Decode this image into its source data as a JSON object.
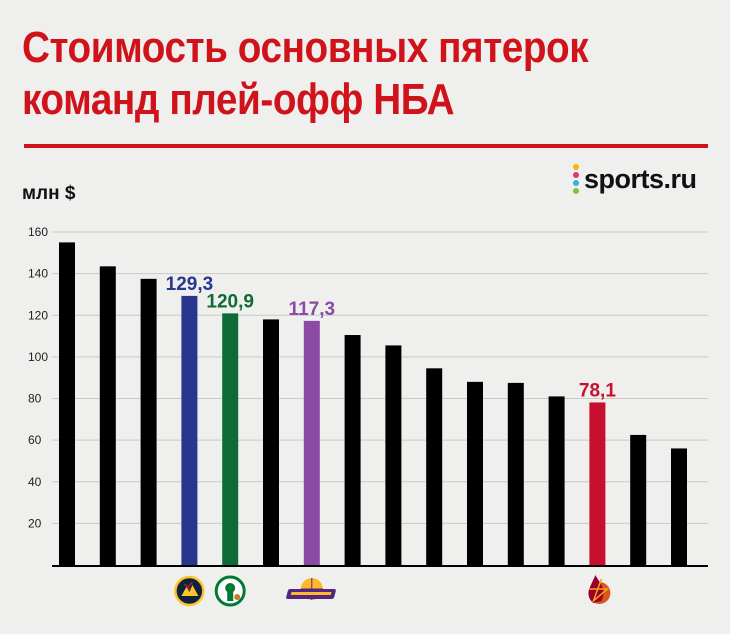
{
  "title": "Стоимость основных пятерок команд плей-офф НБА",
  "logo": {
    "text": "sports.ru",
    "dot_colors": [
      "#f7b500",
      "#e2336f",
      "#2fb3e0",
      "#7cc242"
    ]
  },
  "icons": [
    "nuggets-logo-icon",
    "celtics-logo-icon",
    "lakers-logo-icon",
    "heat-logo-icon"
  ],
  "colors": {
    "title": "#d0121b",
    "default_bar": "#000000",
    "nuggets": "#27378f",
    "celtics": "#0e6b37",
    "lakers": "#8b4aa5",
    "heat": "#c8102e"
  },
  "chart_data": {
    "type": "bar",
    "title": "Стоимость основных пятерок команд плей-офф НБА",
    "ylabel": "млн $",
    "xlabel": "",
    "ylim": [
      0,
      160
    ],
    "yticks": [
      20,
      40,
      60,
      80,
      100,
      120,
      140,
      160
    ],
    "grid": true,
    "values": [
      155,
      143.5,
      137.5,
      129.3,
      120.9,
      118,
      117.3,
      110.5,
      105.5,
      94.5,
      88,
      87.5,
      81,
      78.1,
      62.5,
      56
    ],
    "bar_colors": [
      "#000000",
      "#000000",
      "#000000",
      "#27378f",
      "#0e6b37",
      "#000000",
      "#8b4aa5",
      "#000000",
      "#000000",
      "#000000",
      "#000000",
      "#000000",
      "#000000",
      "#c8102e",
      "#000000",
      "#000000"
    ],
    "data_labels": [
      "",
      "",
      "",
      "129,3",
      "120,9",
      "",
      "117,3",
      "",
      "",
      "",
      "",
      "",
      "",
      "78,1",
      "",
      ""
    ],
    "team_logos": [
      "",
      "",
      "",
      "nuggets-logo-icon",
      "celtics-logo-icon",
      "",
      "lakers-logo-icon",
      "",
      "",
      "",
      "",
      "",
      "",
      "heat-logo-icon",
      "",
      ""
    ]
  }
}
